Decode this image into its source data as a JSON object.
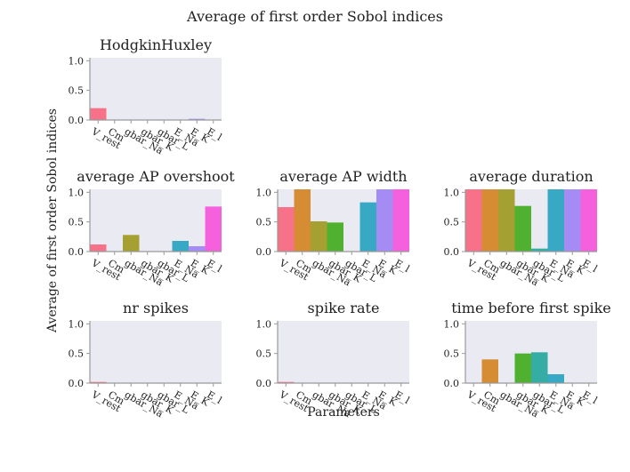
{
  "figure": {
    "title": "Average of first order Sobol indices",
    "ylabel": "Average of first order Sobol indices",
    "xlabel": "Parameters"
  },
  "colors": {
    "axes_bg": "#eaeaf2",
    "spine": "#999999",
    "parameters": [
      "#f77189",
      "#d58c32",
      "#a4a031",
      "#50b131",
      "#36ada4",
      "#38a9c5",
      "#a48cf4",
      "#f561dd"
    ]
  },
  "chart_data": [
    {
      "type": "bar",
      "title": "HodgkinHuxley",
      "categories": [
        "V_rest",
        "Cm",
        "gbar_Na",
        "gbar_K",
        "gbar_L",
        "E_Na",
        "E_K",
        "E_l"
      ],
      "values": [
        0.2,
        0.0,
        0.0,
        0.0,
        0.0,
        0.0,
        0.02,
        0.0
      ],
      "ylim": [
        0,
        1.05
      ],
      "yticks": [
        "0.0",
        "0.5",
        "1.0"
      ],
      "grid": false
    },
    {
      "type": "bar",
      "title": "average AP overshoot",
      "categories": [
        "V_rest",
        "Cm",
        "gbar_Na",
        "gbar_K",
        "gbar_L",
        "E_Na",
        "E_K",
        "E_l"
      ],
      "values": [
        0.12,
        0.0,
        0.28,
        0.0,
        0.0,
        0.18,
        0.09,
        0.76
      ],
      "ylim": [
        0,
        1.05
      ],
      "yticks": [
        "0.0",
        "0.5",
        "1.0"
      ],
      "grid": false
    },
    {
      "type": "bar",
      "title": "average AP width",
      "categories": [
        "V_rest",
        "Cm",
        "gbar_Na",
        "gbar_K",
        "gbar_L",
        "E_Na",
        "E_K",
        "E_l"
      ],
      "values": [
        0.75,
        1.05,
        0.51,
        0.49,
        0.0,
        0.83,
        1.05,
        1.05
      ],
      "ylim": [
        0,
        1.05
      ],
      "yticks": [
        "0.0",
        "0.5",
        "1.0"
      ],
      "grid": false
    },
    {
      "type": "bar",
      "title": "average duration",
      "categories": [
        "V_rest",
        "Cm",
        "gbar_Na",
        "gbar_K",
        "gbar_L",
        "E_Na",
        "E_K",
        "E_l"
      ],
      "values": [
        1.05,
        1.05,
        1.05,
        0.77,
        0.05,
        1.05,
        1.05,
        1.05
      ],
      "ylim": [
        0,
        1.05
      ],
      "yticks": [
        "0.0",
        "0.5",
        "1.0"
      ],
      "grid": false
    },
    {
      "type": "bar",
      "title": "nr spikes",
      "categories": [
        "V_rest",
        "Cm",
        "gbar_Na",
        "gbar_K",
        "gbar_L",
        "E_Na",
        "E_K",
        "E_l"
      ],
      "values": [
        0.02,
        0.0,
        0.0,
        0.0,
        0.0,
        0.0,
        0.0,
        0.0
      ],
      "ylim": [
        0,
        1.05
      ],
      "yticks": [
        "0.0",
        "0.5",
        "1.0"
      ],
      "grid": false
    },
    {
      "type": "bar",
      "title": "spike rate",
      "categories": [
        "V_rest",
        "Cm",
        "gbar_Na",
        "gbar_K",
        "gbar_L",
        "E_Na",
        "E_K",
        "E_l"
      ],
      "values": [
        0.02,
        0.0,
        0.0,
        0.0,
        0.0,
        0.0,
        0.0,
        0.0
      ],
      "ylim": [
        0,
        1.05
      ],
      "yticks": [
        "0.0",
        "0.5",
        "1.0"
      ],
      "grid": false
    },
    {
      "type": "bar",
      "title": "time before first spike",
      "categories": [
        "V_rest",
        "Cm",
        "gbar_Na",
        "gbar_K",
        "gbar_L",
        "E_Na",
        "E_K",
        "E_l"
      ],
      "values": [
        0.0,
        0.4,
        0.0,
        0.5,
        0.52,
        0.15,
        0.0,
        0.0
      ],
      "ylim": [
        0,
        1.05
      ],
      "yticks": [
        "0.0",
        "0.5",
        "1.0"
      ],
      "grid": false
    }
  ]
}
